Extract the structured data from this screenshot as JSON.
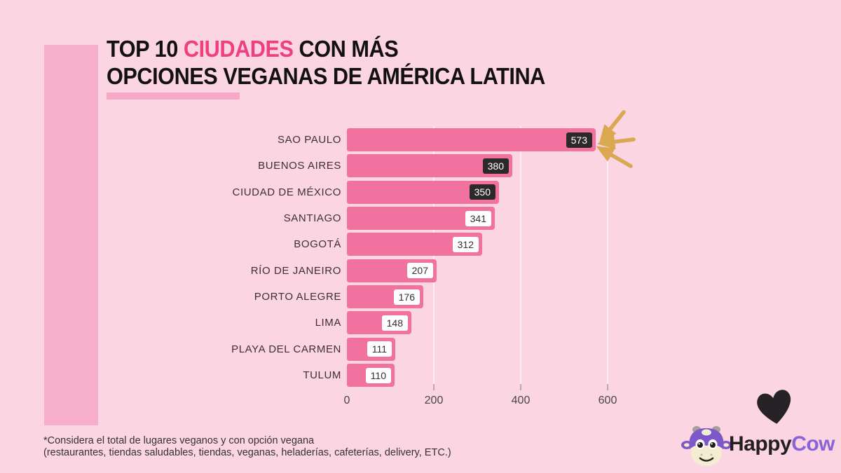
{
  "title": {
    "part1": "TOP 10 ",
    "highlight": "CIUDADES",
    "part2": " CON MÁS",
    "line2": "OPCIONES VEGANAS DE AMÉRICA LATINA"
  },
  "chart_data": {
    "type": "bar",
    "orientation": "horizontal",
    "categories": [
      "SAO PAULO",
      "BUENOS AIRES",
      "CIUDAD DE MÉXICO",
      "SANTIAGO",
      "BOGOTÁ",
      "RÍO DE JANEIRO",
      "PORTO ALEGRE",
      "LIMA",
      "PLAYA DEL CARMEN",
      "TULUM"
    ],
    "values": [
      573,
      380,
      350,
      341,
      312,
      207,
      176,
      148,
      111,
      110
    ],
    "xticks": [
      0,
      200,
      400,
      600
    ],
    "xlim": [
      0,
      600
    ],
    "dark_badge_count": 3,
    "grid": true,
    "legend": "none",
    "annotation": "three hand-drawn gold arrows pointing at the 573 value of SAO PAULO"
  },
  "footnote": {
    "line1": "*Considera el total de lugares veganos y con opción vegana",
    "line2": "(restaurantes, tiendas saludables, tiendas, veganas, heladerías, cafeterías, delivery, ETC.)"
  },
  "logo": {
    "happy": "Happy",
    "cow": "Cow"
  },
  "colors": {
    "background": "#fbd5e2",
    "accent_panel": "#f6aecb",
    "bar": "#f1719f",
    "title_highlight": "#ef3f7e",
    "badge_dark": "#2d292b",
    "arrow_gold": "#d9a850",
    "logo_purple": "#8a63d6",
    "cow_head_purple": "#7d58c8"
  }
}
